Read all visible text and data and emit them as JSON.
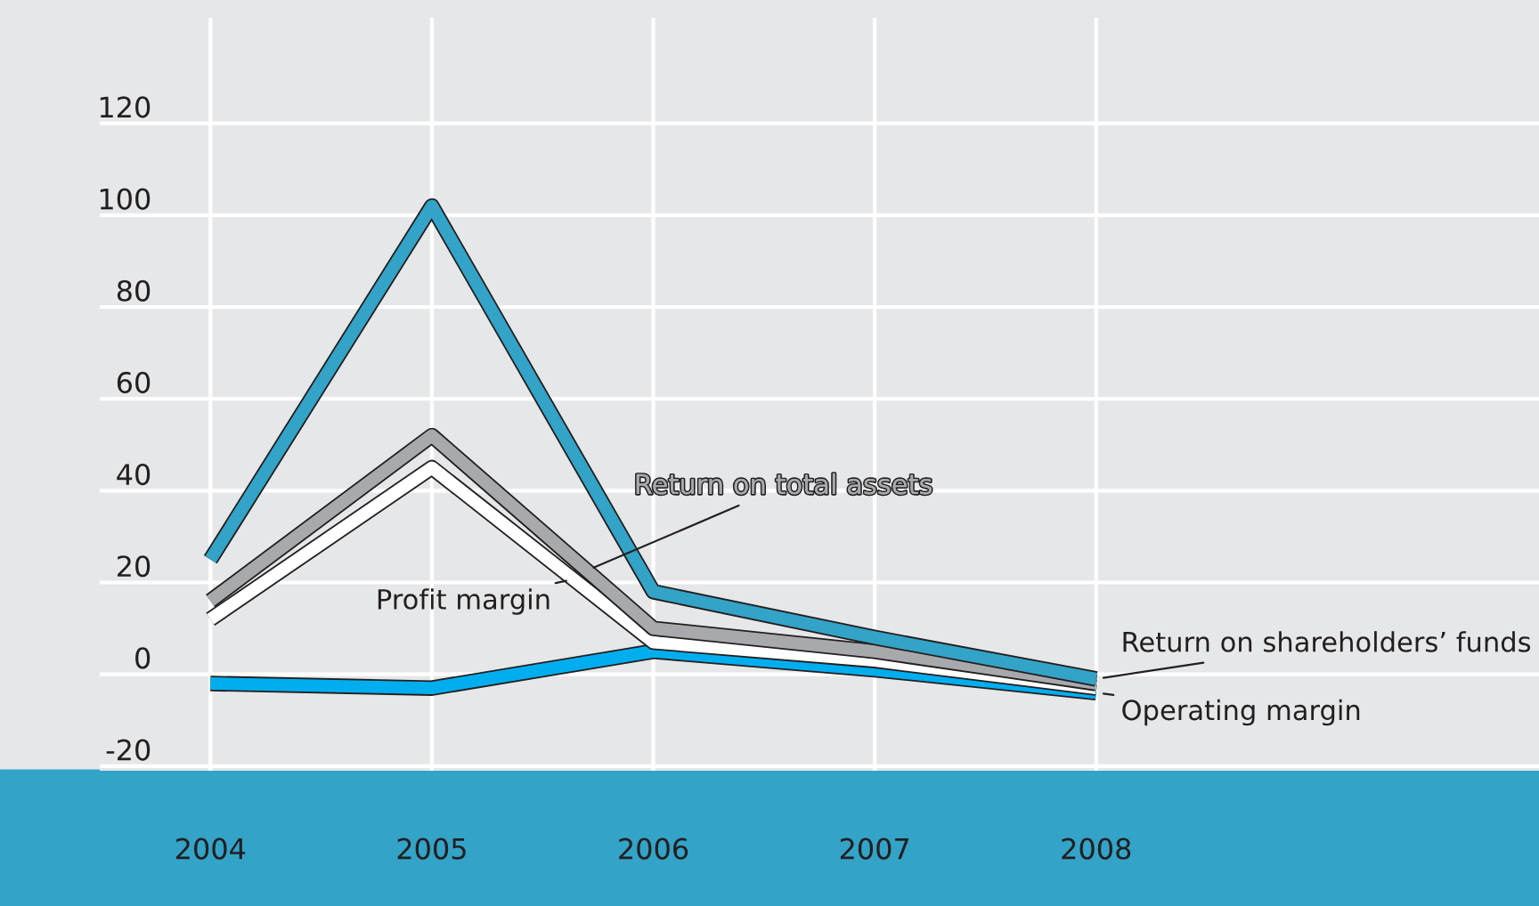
{
  "chart_data": {
    "type": "line",
    "x": [
      2004,
      2005,
      2006,
      2007,
      2008
    ],
    "series": [
      {
        "name": "Return on shareholders’ funds",
        "color": "#33a3c8",
        "values": [
          25,
          102,
          18,
          8,
          -1
        ]
      },
      {
        "name": "Return on total assets",
        "color": "#a7a9ac",
        "values": [
          16,
          52,
          10,
          5,
          -2
        ]
      },
      {
        "name": "Profit margin",
        "color": "#ffffff",
        "values": [
          12,
          45,
          7,
          3,
          -3
        ]
      },
      {
        "name": "Operating margin",
        "color": "#00aeef",
        "values": [
          -2,
          -3,
          5,
          1,
          -4
        ]
      }
    ],
    "xlim": [
      2003.5,
      2010
    ],
    "xticks": [
      2004,
      2005,
      2006,
      2007,
      2008
    ],
    "ylim": [
      -21,
      143
    ],
    "yticks": [
      -20,
      0,
      20,
      40,
      60,
      80,
      100,
      120
    ],
    "grid": true,
    "legend": false,
    "marker": "none",
    "line_style": "solid"
  }
}
